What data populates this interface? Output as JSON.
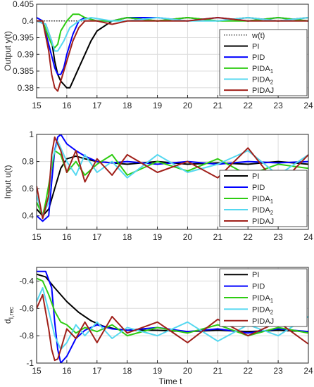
{
  "figure": {
    "xlabel": "Time t"
  },
  "chart_data": [
    {
      "type": "line",
      "ylabel": "Output y(t)",
      "xlim": [
        15,
        24
      ],
      "ylim": [
        0.377,
        0.405
      ],
      "xticks": [
        "15",
        "16",
        "17",
        "18",
        "19",
        "20",
        "21",
        "22",
        "23",
        "24"
      ],
      "yticks": [
        "0.38",
        "0.385",
        "0.39",
        "0.395",
        "0.4",
        "0.405"
      ],
      "grid": true,
      "legend": "bottom-right",
      "series": [
        {
          "name": "w(t)",
          "label": "w(t)",
          "color": "#000000",
          "style": "dotted",
          "x": [
            15,
            24
          ],
          "y": [
            0.4,
            0.4
          ]
        },
        {
          "name": "PI",
          "label": "PI",
          "color": "#000000",
          "x": [
            15.0,
            15.3,
            15.5,
            15.6,
            15.7,
            15.8,
            15.9,
            16.0,
            16.1,
            16.2,
            16.4,
            16.6,
            16.8,
            17.0,
            17.5,
            18,
            19,
            20,
            21,
            22,
            23,
            24
          ],
          "y": [
            0.4,
            0.399,
            0.394,
            0.388,
            0.384,
            0.382,
            0.381,
            0.38,
            0.38,
            0.382,
            0.386,
            0.39,
            0.394,
            0.397,
            0.4,
            0.401,
            0.4,
            0.401,
            0.4,
            0.401,
            0.4,
            0.401
          ]
        },
        {
          "name": "PID",
          "label": "PID",
          "color": "#0000FF",
          "x": [
            15.0,
            15.2,
            15.4,
            15.6,
            15.7,
            15.8,
            15.9,
            16.0,
            16.2,
            16.4,
            16.6,
            17.0,
            17.5,
            18,
            19,
            20,
            21,
            22,
            23,
            24
          ],
          "y": [
            0.401,
            0.4,
            0.393,
            0.386,
            0.384,
            0.384,
            0.386,
            0.39,
            0.396,
            0.4,
            0.401,
            0.4,
            0.4,
            0.401,
            0.401,
            0.4,
            0.401,
            0.4,
            0.401,
            0.4
          ]
        },
        {
          "name": "PIDA1",
          "label": "PIDA",
          "sub": "1",
          "color": "#2ECC12",
          "x": [
            15.0,
            15.2,
            15.4,
            15.5,
            15.6,
            15.7,
            15.8,
            16.0,
            16.2,
            16.4,
            16.6,
            17.0,
            17.5,
            18,
            19,
            20,
            21,
            22,
            23,
            24
          ],
          "y": [
            0.4,
            0.4,
            0.395,
            0.393,
            0.392,
            0.393,
            0.397,
            0.4,
            0.402,
            0.402,
            0.401,
            0.4,
            0.4,
            0.401,
            0.4,
            0.401,
            0.4,
            0.4,
            0.401,
            0.4
          ]
        },
        {
          "name": "PIDA2",
          "label": "PIDA",
          "sub": "2",
          "color": "#55D8F0",
          "x": [
            15.0,
            15.3,
            15.5,
            15.6,
            15.7,
            15.9,
            16.1,
            16.4,
            16.8,
            17.5,
            18,
            19,
            20,
            21,
            22,
            23,
            24
          ],
          "y": [
            0.4,
            0.399,
            0.394,
            0.391,
            0.391,
            0.394,
            0.398,
            0.4,
            0.401,
            0.4,
            0.4,
            0.401,
            0.4,
            0.4,
            0.401,
            0.4,
            0.401
          ]
        },
        {
          "name": "PIDAJ",
          "label": "PIDAJ",
          "color": "#A0201A",
          "x": [
            15.0,
            15.2,
            15.4,
            15.5,
            15.6,
            15.7,
            15.8,
            16.0,
            16.2,
            16.4,
            16.6,
            17.0,
            17.5,
            18,
            19,
            20,
            21,
            22,
            23,
            24
          ],
          "y": [
            0.4,
            0.4,
            0.391,
            0.384,
            0.38,
            0.379,
            0.382,
            0.388,
            0.394,
            0.398,
            0.4,
            0.4,
            0.399,
            0.4,
            0.4,
            0.4,
            0.401,
            0.4,
            0.4,
            0.4
          ]
        }
      ]
    },
    {
      "type": "line",
      "ylabel": "Input u(t)",
      "xlim": [
        15,
        24
      ],
      "ylim": [
        0.3,
        1.0
      ],
      "xticks": [
        "15",
        "16",
        "17",
        "18",
        "19",
        "20",
        "21",
        "22",
        "23",
        "24"
      ],
      "yticks": [
        "0.4",
        "0.6",
        "0.8",
        "1"
      ],
      "grid": true,
      "legend": "bottom-right",
      "series": [
        {
          "name": "PI",
          "label": "PI",
          "color": "#000000",
          "x": [
            15.0,
            15.2,
            15.4,
            15.6,
            15.8,
            16.0,
            16.3,
            16.6,
            17.0,
            17.5,
            18,
            19,
            20,
            21,
            22,
            23,
            24
          ],
          "y": [
            0.45,
            0.4,
            0.45,
            0.6,
            0.75,
            0.82,
            0.84,
            0.82,
            0.8,
            0.79,
            0.78,
            0.8,
            0.78,
            0.79,
            0.78,
            0.8,
            0.78
          ]
        },
        {
          "name": "PID",
          "label": "PID",
          "color": "#0000FF",
          "x": [
            15.0,
            15.2,
            15.4,
            15.5,
            15.6,
            15.7,
            15.8,
            16.0,
            16.3,
            16.6,
            17.0,
            17.5,
            18,
            19,
            20,
            21,
            22,
            23,
            24
          ],
          "y": [
            0.4,
            0.36,
            0.4,
            0.65,
            0.88,
            0.98,
            1.0,
            0.93,
            0.88,
            0.84,
            0.8,
            0.79,
            0.8,
            0.78,
            0.8,
            0.78,
            0.8,
            0.79,
            0.8
          ]
        },
        {
          "name": "PIDA1",
          "label": "PIDA",
          "sub": "1",
          "color": "#2ECC12",
          "x": [
            15.0,
            15.2,
            15.3,
            15.5,
            15.6,
            15.8,
            16.0,
            16.3,
            16.6,
            17.0,
            17.5,
            18,
            19,
            20,
            21,
            22,
            23,
            24
          ],
          "y": [
            0.5,
            0.4,
            0.5,
            0.75,
            0.88,
            0.85,
            0.72,
            0.8,
            0.7,
            0.78,
            0.85,
            0.7,
            0.8,
            0.73,
            0.82,
            0.7,
            0.78,
            0.75
          ]
        },
        {
          "name": "PIDA2",
          "label": "PIDA",
          "sub": "2",
          "color": "#55D8F0",
          "x": [
            15.0,
            15.2,
            15.4,
            15.5,
            15.7,
            16.0,
            16.3,
            16.6,
            17.0,
            17.5,
            18,
            19,
            20,
            21,
            22,
            23,
            24
          ],
          "y": [
            0.55,
            0.4,
            0.5,
            0.8,
            0.95,
            0.8,
            0.7,
            0.85,
            0.72,
            0.8,
            0.68,
            0.85,
            0.72,
            0.78,
            0.88,
            0.7,
            0.85
          ]
        },
        {
          "name": "PIDAJ",
          "label": "PIDAJ",
          "color": "#A0201A",
          "x": [
            15.0,
            15.2,
            15.4,
            15.5,
            15.6,
            15.8,
            16.0,
            16.3,
            16.6,
            17.0,
            17.5,
            18,
            19,
            20,
            21,
            22,
            23,
            24
          ],
          "y": [
            0.62,
            0.38,
            0.55,
            0.85,
            0.98,
            0.88,
            0.72,
            0.88,
            0.65,
            0.82,
            0.7,
            0.85,
            0.72,
            0.8,
            0.68,
            0.9,
            0.62,
            0.85
          ]
        }
      ]
    },
    {
      "type": "line",
      "ylabel": "d",
      "ylabel_sub": "I,rec",
      "xlim": [
        15,
        24
      ],
      "ylim": [
        -1.0,
        -0.3
      ],
      "xticks": [
        "15",
        "16",
        "17",
        "18",
        "19",
        "20",
        "21",
        "22",
        "23",
        "24"
      ],
      "yticks": [
        "-1",
        "-0.8",
        "-0.6",
        "-0.4"
      ],
      "grid": true,
      "legend": "top-right",
      "series": [
        {
          "name": "PI",
          "label": "PI",
          "color": "#000000",
          "x": [
            15.0,
            15.3,
            15.6,
            16.0,
            16.4,
            16.8,
            17.2,
            17.6,
            18,
            19,
            20,
            21,
            22,
            23,
            24
          ],
          "y": [
            -0.35,
            -0.37,
            -0.45,
            -0.55,
            -0.63,
            -0.69,
            -0.73,
            -0.75,
            -0.76,
            -0.76,
            -0.77,
            -0.76,
            -0.77,
            -0.76,
            -0.77
          ]
        },
        {
          "name": "PID",
          "label": "PID",
          "color": "#0000FF",
          "x": [
            15.0,
            15.2,
            15.3,
            15.5,
            15.6,
            15.7,
            15.8,
            16.0,
            16.3,
            16.6,
            17.0,
            17.5,
            18,
            19,
            20,
            21,
            22,
            23,
            24
          ],
          "y": [
            -0.33,
            -0.33,
            -0.33,
            -0.45,
            -0.7,
            -0.9,
            -1.0,
            -0.95,
            -0.82,
            -0.76,
            -0.72,
            -0.75,
            -0.76,
            -0.74,
            -0.77,
            -0.75,
            -0.78,
            -0.75,
            -0.77
          ]
        },
        {
          "name": "PIDA1",
          "label": "PIDA",
          "sub": "1",
          "color": "#2ECC12",
          "x": [
            15.0,
            15.2,
            15.4,
            15.6,
            15.8,
            16.0,
            16.3,
            16.6,
            17.0,
            17.5,
            18,
            19,
            20,
            21,
            22,
            23,
            24
          ],
          "y": [
            -0.38,
            -0.4,
            -0.5,
            -0.62,
            -0.7,
            -0.72,
            -0.78,
            -0.74,
            -0.77,
            -0.72,
            -0.8,
            -0.74,
            -0.78,
            -0.72,
            -0.8,
            -0.74,
            -0.78
          ]
        },
        {
          "name": "PIDA2",
          "label": "PIDA",
          "sub": "2",
          "color": "#55D8F0",
          "x": [
            15.0,
            15.2,
            15.4,
            15.6,
            15.8,
            16.0,
            16.3,
            16.6,
            17.0,
            17.5,
            18,
            19,
            20,
            21,
            22,
            23,
            24
          ],
          "y": [
            -0.55,
            -0.45,
            -0.62,
            -0.8,
            -0.9,
            -0.85,
            -0.72,
            -0.8,
            -0.7,
            -0.82,
            -0.74,
            -0.8,
            -0.7,
            -0.84,
            -0.72,
            -0.8,
            -0.66
          ]
        },
        {
          "name": "PIDAJ",
          "label": "PIDAJ",
          "color": "#A0201A",
          "x": [
            15.0,
            15.2,
            15.4,
            15.5,
            15.6,
            15.7,
            15.8,
            16.0,
            16.3,
            16.6,
            17.0,
            17.5,
            18,
            19,
            20,
            21,
            22,
            23,
            24
          ],
          "y": [
            -0.6,
            -0.5,
            -0.75,
            -0.9,
            -0.98,
            -0.97,
            -0.9,
            -0.75,
            -0.82,
            -0.7,
            -0.85,
            -0.66,
            -0.78,
            -0.7,
            -0.85,
            -0.68,
            -0.8,
            -0.7,
            -0.86
          ]
        }
      ]
    }
  ]
}
